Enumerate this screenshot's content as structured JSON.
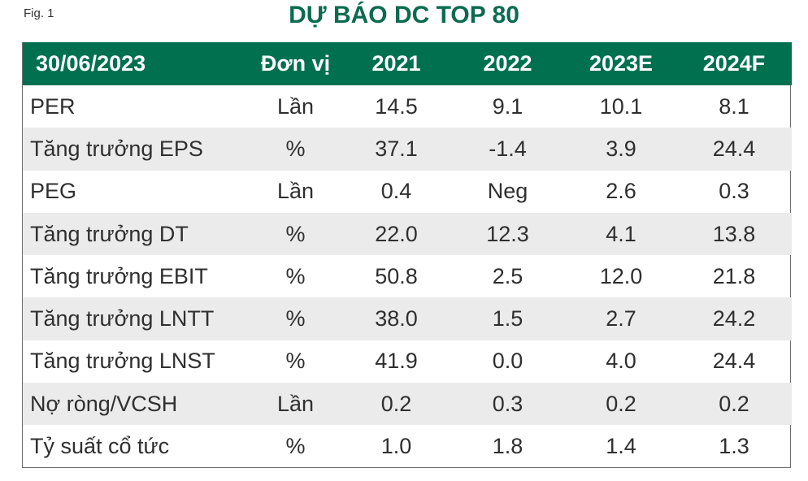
{
  "figure_label": "Fig. 1",
  "title": "DỰ BÁO DC TOP 80",
  "table": {
    "headers": [
      "30/06/2023",
      "Đơn vị",
      "2021",
      "2022",
      "2023E",
      "2024F"
    ],
    "rows": [
      [
        "PER",
        "Lần",
        "14.5",
        "9.1",
        "10.1",
        "8.1"
      ],
      [
        "Tăng trưởng EPS",
        "%",
        "37.1",
        "-1.4",
        "3.9",
        "24.4"
      ],
      [
        "PEG",
        "Lần",
        "0.4",
        "Neg",
        "2.6",
        "0.3"
      ],
      [
        "Tăng trưởng DT",
        "%",
        "22.0",
        "12.3",
        "4.1",
        "13.8"
      ],
      [
        "Tăng trưởng EBIT",
        "%",
        "50.8",
        "2.5",
        "12.0",
        "21.8"
      ],
      [
        "Tăng trưởng LNTT",
        "%",
        "38.0",
        "1.5",
        "2.7",
        "24.2"
      ],
      [
        "Tăng trưởng LNST",
        "%",
        "41.9",
        "0.0",
        "4.0",
        "24.4"
      ],
      [
        "Nợ ròng/VCSH",
        "Lần",
        "0.2",
        "0.3",
        "0.2",
        "0.2"
      ],
      [
        "Tỷ suất cổ tức",
        "%",
        "1.0",
        "1.8",
        "1.4",
        "1.3"
      ]
    ]
  },
  "colors": {
    "header_bg": "#00704f",
    "title": "#0b6b4f",
    "alt_row": "#ebebeb"
  }
}
